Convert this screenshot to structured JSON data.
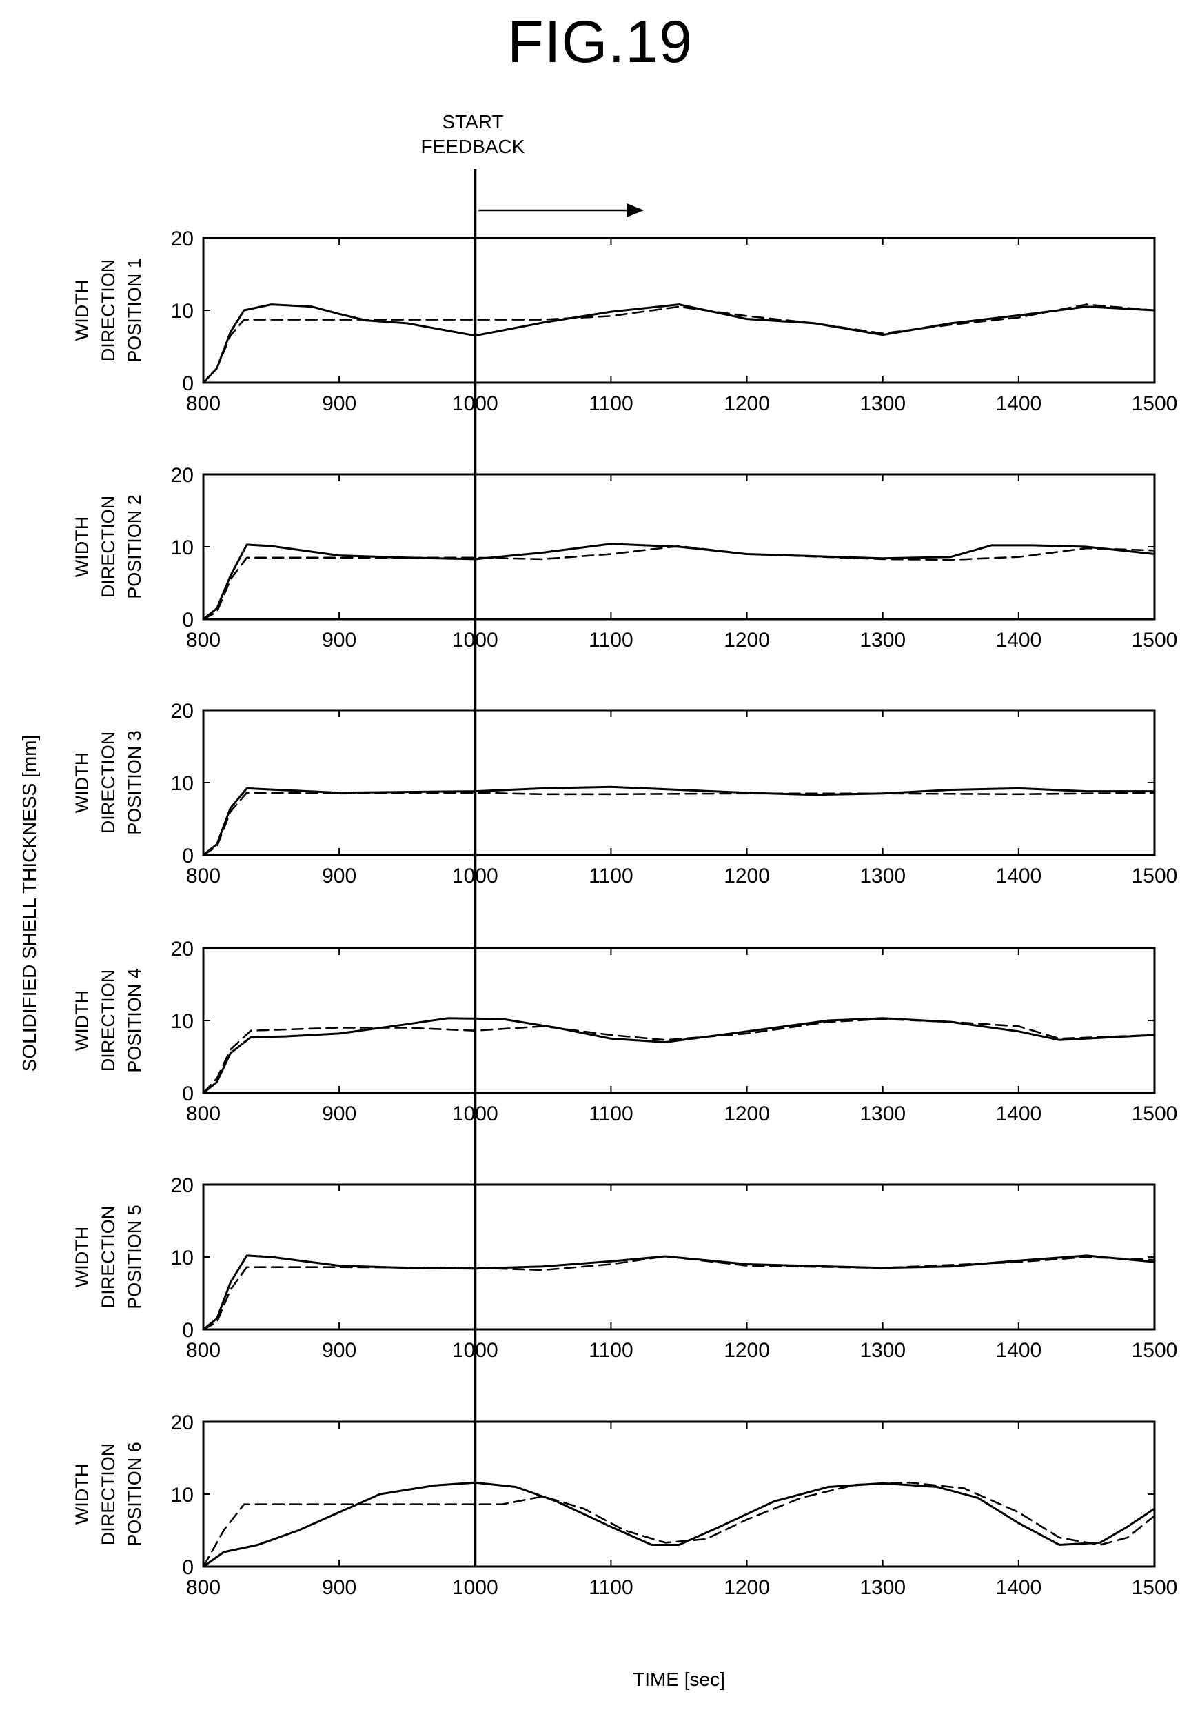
{
  "figure_title": "FIG.19",
  "annotation": {
    "line1": "START",
    "line2": "FEEDBACK",
    "x": 1000
  },
  "global_ylabel": "SOLIDIFIED SHELL THICKNESS [mm]",
  "global_xlabel": "TIME [sec]",
  "chart_data": [
    {
      "type": "line",
      "ylabel": [
        "WIDTH",
        "DIRECTION",
        "POSITION 1"
      ],
      "xlim": [
        800,
        1500
      ],
      "ylim": [
        0,
        20
      ],
      "xticks": [
        800,
        900,
        1000,
        1100,
        1200,
        1300,
        1400,
        1500
      ],
      "yticks": [
        0,
        10,
        20
      ],
      "series": [
        {
          "style": "solid",
          "points": [
            [
              800,
              0
            ],
            [
              810,
              2
            ],
            [
              820,
              7
            ],
            [
              830,
              10
            ],
            [
              850,
              10.8
            ],
            [
              880,
              10.5
            ],
            [
              900,
              9.5
            ],
            [
              920,
              8.6
            ],
            [
              950,
              8.2
            ],
            [
              1000,
              6.5
            ],
            [
              1050,
              8.3
            ],
            [
              1100,
              9.8
            ],
            [
              1150,
              10.8
            ],
            [
              1200,
              8.8
            ],
            [
              1250,
              8.2
            ],
            [
              1300,
              6.6
            ],
            [
              1350,
              8.2
            ],
            [
              1400,
              9.3
            ],
            [
              1450,
              10.5
            ],
            [
              1500,
              10
            ]
          ]
        },
        {
          "style": "dashed",
          "points": [
            [
              800,
              0
            ],
            [
              810,
              2
            ],
            [
              820,
              6.5
            ],
            [
              830,
              8.7
            ],
            [
              900,
              8.7
            ],
            [
              950,
              8.7
            ],
            [
              1000,
              8.7
            ],
            [
              1050,
              8.7
            ],
            [
              1100,
              9.2
            ],
            [
              1150,
              10.5
            ],
            [
              1200,
              9.2
            ],
            [
              1250,
              8.2
            ],
            [
              1300,
              6.8
            ],
            [
              1350,
              8
            ],
            [
              1400,
              9
            ],
            [
              1450,
              10.8
            ],
            [
              1500,
              10
            ]
          ]
        }
      ]
    },
    {
      "type": "line",
      "ylabel": [
        "WIDTH",
        "DIRECTION",
        "POSITION 2"
      ],
      "xlim": [
        800,
        1500
      ],
      "ylim": [
        0,
        20
      ],
      "xticks": [
        800,
        900,
        1000,
        1100,
        1200,
        1300,
        1400,
        1500
      ],
      "yticks": [
        0,
        10,
        20
      ],
      "series": [
        {
          "style": "solid",
          "points": [
            [
              800,
              0
            ],
            [
              810,
              1.5
            ],
            [
              820,
              6
            ],
            [
              832,
              10.3
            ],
            [
              850,
              10.1
            ],
            [
              900,
              8.8
            ],
            [
              950,
              8.5
            ],
            [
              1000,
              8.3
            ],
            [
              1050,
              9.2
            ],
            [
              1100,
              10.4
            ],
            [
              1150,
              10
            ],
            [
              1200,
              9
            ],
            [
              1300,
              8.4
            ],
            [
              1350,
              8.6
            ],
            [
              1380,
              10.2
            ],
            [
              1410,
              10.2
            ],
            [
              1450,
              10
            ],
            [
              1500,
              9
            ]
          ]
        },
        {
          "style": "dashed",
          "points": [
            [
              800,
              0
            ],
            [
              810,
              1
            ],
            [
              820,
              5.5
            ],
            [
              832,
              8.5
            ],
            [
              900,
              8.5
            ],
            [
              1000,
              8.5
            ],
            [
              1050,
              8.3
            ],
            [
              1100,
              9
            ],
            [
              1150,
              10.1
            ],
            [
              1200,
              9
            ],
            [
              1300,
              8.3
            ],
            [
              1350,
              8.2
            ],
            [
              1400,
              8.6
            ],
            [
              1450,
              9.8
            ],
            [
              1500,
              9.5
            ]
          ]
        }
      ]
    },
    {
      "type": "line",
      "ylabel": [
        "WIDTH",
        "DIRECTION",
        "POSITION 3"
      ],
      "xlim": [
        800,
        1500
      ],
      "ylim": [
        0,
        20
      ],
      "xticks": [
        800,
        900,
        1000,
        1100,
        1200,
        1300,
        1400,
        1500
      ],
      "yticks": [
        0,
        10,
        20
      ],
      "series": [
        {
          "style": "solid",
          "points": [
            [
              800,
              0
            ],
            [
              810,
              1.5
            ],
            [
              820,
              6.5
            ],
            [
              832,
              9.2
            ],
            [
              900,
              8.6
            ],
            [
              1000,
              8.8
            ],
            [
              1050,
              9.2
            ],
            [
              1100,
              9.4
            ],
            [
              1150,
              9
            ],
            [
              1200,
              8.6
            ],
            [
              1250,
              8.3
            ],
            [
              1300,
              8.5
            ],
            [
              1350,
              9
            ],
            [
              1400,
              9.2
            ],
            [
              1450,
              8.8
            ],
            [
              1500,
              8.8
            ]
          ]
        },
        {
          "style": "dashed",
          "points": [
            [
              800,
              0
            ],
            [
              810,
              1.2
            ],
            [
              820,
              6
            ],
            [
              832,
              8.6
            ],
            [
              900,
              8.5
            ],
            [
              1000,
              8.6
            ],
            [
              1050,
              8.4
            ],
            [
              1100,
              8.4
            ],
            [
              1200,
              8.5
            ],
            [
              1250,
              8.5
            ],
            [
              1300,
              8.5
            ],
            [
              1400,
              8.4
            ],
            [
              1500,
              8.6
            ]
          ]
        }
      ]
    },
    {
      "type": "line",
      "ylabel": [
        "WIDTH",
        "DIRECTION",
        "POSITION 4"
      ],
      "xlim": [
        800,
        1500
      ],
      "ylim": [
        0,
        20
      ],
      "xticks": [
        800,
        900,
        1000,
        1100,
        1200,
        1300,
        1400,
        1500
      ],
      "yticks": [
        0,
        10,
        20
      ],
      "series": [
        {
          "style": "solid",
          "points": [
            [
              800,
              0
            ],
            [
              810,
              1.5
            ],
            [
              820,
              5.5
            ],
            [
              835,
              7.7
            ],
            [
              860,
              7.8
            ],
            [
              900,
              8.2
            ],
            [
              950,
              9.5
            ],
            [
              980,
              10.3
            ],
            [
              1020,
              10.2
            ],
            [
              1060,
              9
            ],
            [
              1100,
              7.5
            ],
            [
              1140,
              7
            ],
            [
              1200,
              8.5
            ],
            [
              1260,
              10
            ],
            [
              1300,
              10.3
            ],
            [
              1350,
              9.8
            ],
            [
              1400,
              8.5
            ],
            [
              1430,
              7.3
            ],
            [
              1500,
              8
            ]
          ]
        },
        {
          "style": "dashed",
          "points": [
            [
              800,
              0
            ],
            [
              810,
              2
            ],
            [
              820,
              6
            ],
            [
              835,
              8.6
            ],
            [
              900,
              9
            ],
            [
              950,
              9
            ],
            [
              1000,
              8.6
            ],
            [
              1050,
              9.2
            ],
            [
              1100,
              8
            ],
            [
              1140,
              7.3
            ],
            [
              1200,
              8.2
            ],
            [
              1260,
              9.8
            ],
            [
              1300,
              10.2
            ],
            [
              1350,
              9.8
            ],
            [
              1400,
              9.2
            ],
            [
              1430,
              7.5
            ],
            [
              1500,
              8
            ]
          ]
        }
      ]
    },
    {
      "type": "line",
      "ylabel": [
        "WIDTH",
        "DIRECTION",
        "POSITION 5"
      ],
      "xlim": [
        800,
        1500
      ],
      "ylim": [
        0,
        20
      ],
      "xticks": [
        800,
        900,
        1000,
        1100,
        1200,
        1300,
        1400,
        1500
      ],
      "yticks": [
        0,
        10,
        20
      ],
      "series": [
        {
          "style": "solid",
          "points": [
            [
              800,
              0
            ],
            [
              810,
              1.5
            ],
            [
              820,
              6.5
            ],
            [
              832,
              10.2
            ],
            [
              850,
              10
            ],
            [
              900,
              8.8
            ],
            [
              950,
              8.5
            ],
            [
              1000,
              8.4
            ],
            [
              1050,
              8.7
            ],
            [
              1100,
              9.4
            ],
            [
              1140,
              10.1
            ],
            [
              1200,
              9
            ],
            [
              1300,
              8.5
            ],
            [
              1350,
              8.7
            ],
            [
              1400,
              9.5
            ],
            [
              1450,
              10.2
            ],
            [
              1500,
              9.3
            ]
          ]
        },
        {
          "style": "dashed",
          "points": [
            [
              800,
              0
            ],
            [
              810,
              1
            ],
            [
              820,
              5.5
            ],
            [
              832,
              8.6
            ],
            [
              900,
              8.6
            ],
            [
              1000,
              8.5
            ],
            [
              1050,
              8.2
            ],
            [
              1100,
              9
            ],
            [
              1140,
              10.1
            ],
            [
              1200,
              8.8
            ],
            [
              1300,
              8.5
            ],
            [
              1400,
              9.3
            ],
            [
              1450,
              10
            ],
            [
              1500,
              9.6
            ]
          ]
        }
      ]
    },
    {
      "type": "line",
      "ylabel": [
        "WIDTH",
        "DIRECTION",
        "POSITION 6"
      ],
      "xlim": [
        800,
        1500
      ],
      "ylim": [
        0,
        20
      ],
      "xticks": [
        800,
        900,
        1000,
        1100,
        1200,
        1300,
        1400,
        1500
      ],
      "yticks": [
        0,
        10,
        20
      ],
      "series": [
        {
          "style": "solid",
          "points": [
            [
              800,
              0
            ],
            [
              815,
              2
            ],
            [
              840,
              3
            ],
            [
              870,
              5
            ],
            [
              900,
              7.5
            ],
            [
              930,
              10
            ],
            [
              970,
              11.2
            ],
            [
              1000,
              11.6
            ],
            [
              1030,
              11
            ],
            [
              1060,
              9
            ],
            [
              1100,
              5.5
            ],
            [
              1130,
              3
            ],
            [
              1150,
              3
            ],
            [
              1180,
              5.5
            ],
            [
              1220,
              9
            ],
            [
              1260,
              11
            ],
            [
              1300,
              11.5
            ],
            [
              1340,
              11
            ],
            [
              1370,
              9.5
            ],
            [
              1400,
              6
            ],
            [
              1430,
              3
            ],
            [
              1460,
              3.3
            ],
            [
              1480,
              5.5
            ],
            [
              1500,
              8
            ]
          ]
        },
        {
          "style": "dashed",
          "points": [
            [
              800,
              0
            ],
            [
              815,
              5
            ],
            [
              830,
              8.6
            ],
            [
              900,
              8.6
            ],
            [
              970,
              8.6
            ],
            [
              1020,
              8.6
            ],
            [
              1050,
              9.7
            ],
            [
              1080,
              8
            ],
            [
              1110,
              5
            ],
            [
              1140,
              3.3
            ],
            [
              1170,
              3.8
            ],
            [
              1200,
              6.5
            ],
            [
              1240,
              9.5
            ],
            [
              1280,
              11.3
            ],
            [
              1320,
              11.6
            ],
            [
              1360,
              10.8
            ],
            [
              1400,
              7.5
            ],
            [
              1430,
              4
            ],
            [
              1460,
              3
            ],
            [
              1480,
              4
            ],
            [
              1500,
              7
            ]
          ]
        }
      ]
    }
  ]
}
